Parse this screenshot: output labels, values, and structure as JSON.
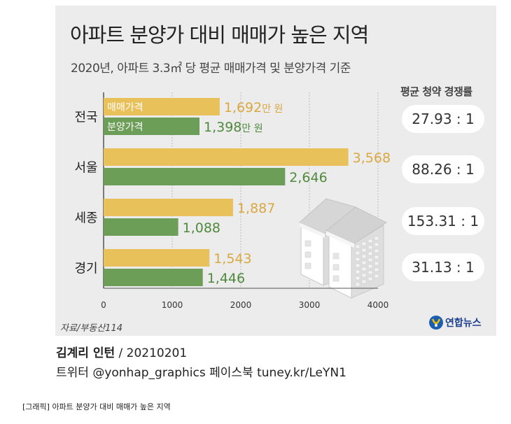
{
  "title": "아파트 분양가 대비 매매가 높은 지역",
  "subtitle": "2020년, 아파트 3.3㎡ 당 평균 매매가격 및 분양가격 기준",
  "rate_header": "평균 청약 경쟁률",
  "rates": [
    "27.93 : 1",
    "88.26 : 1",
    "153.31 : 1",
    "31.13 : 1"
  ],
  "source": "자료/부동산114",
  "logo_text": "연합뉴스",
  "credit_name": "김계리 인턴",
  "credit_date": " / 20210201",
  "twitter": "트위터 @yonhap_graphics  페이스북 tuney.kr/LeYN1",
  "caption": "[그래픽] 아파트 분양가 대비 매매가 높은 지역",
  "colors": {
    "sale": "#e8c15a",
    "presale": "#6c9e58",
    "sale_text": "#d9a840",
    "presale_text": "#4f8a3c",
    "panel": "#ececec"
  },
  "chart_data": {
    "type": "bar",
    "orientation": "horizontal",
    "categories": [
      "전국",
      "서울",
      "세종",
      "경기"
    ],
    "series": [
      {
        "name": "매매가격",
        "values": [
          1692,
          3568,
          1887,
          1543
        ]
      },
      {
        "name": "분양가격",
        "values": [
          1398,
          2646,
          1088,
          1446
        ]
      }
    ],
    "value_labels": {
      "매매가격": [
        "1,692",
        "3,568",
        "1,887",
        "1,543"
      ],
      "분양가격": [
        "1,398",
        "2,646",
        "1,088",
        "1,446"
      ]
    },
    "unit": "만 원",
    "xticks": [
      0,
      1000,
      2000,
      3000,
      4000
    ],
    "xlim": [
      0,
      4000
    ],
    "grid": true
  }
}
